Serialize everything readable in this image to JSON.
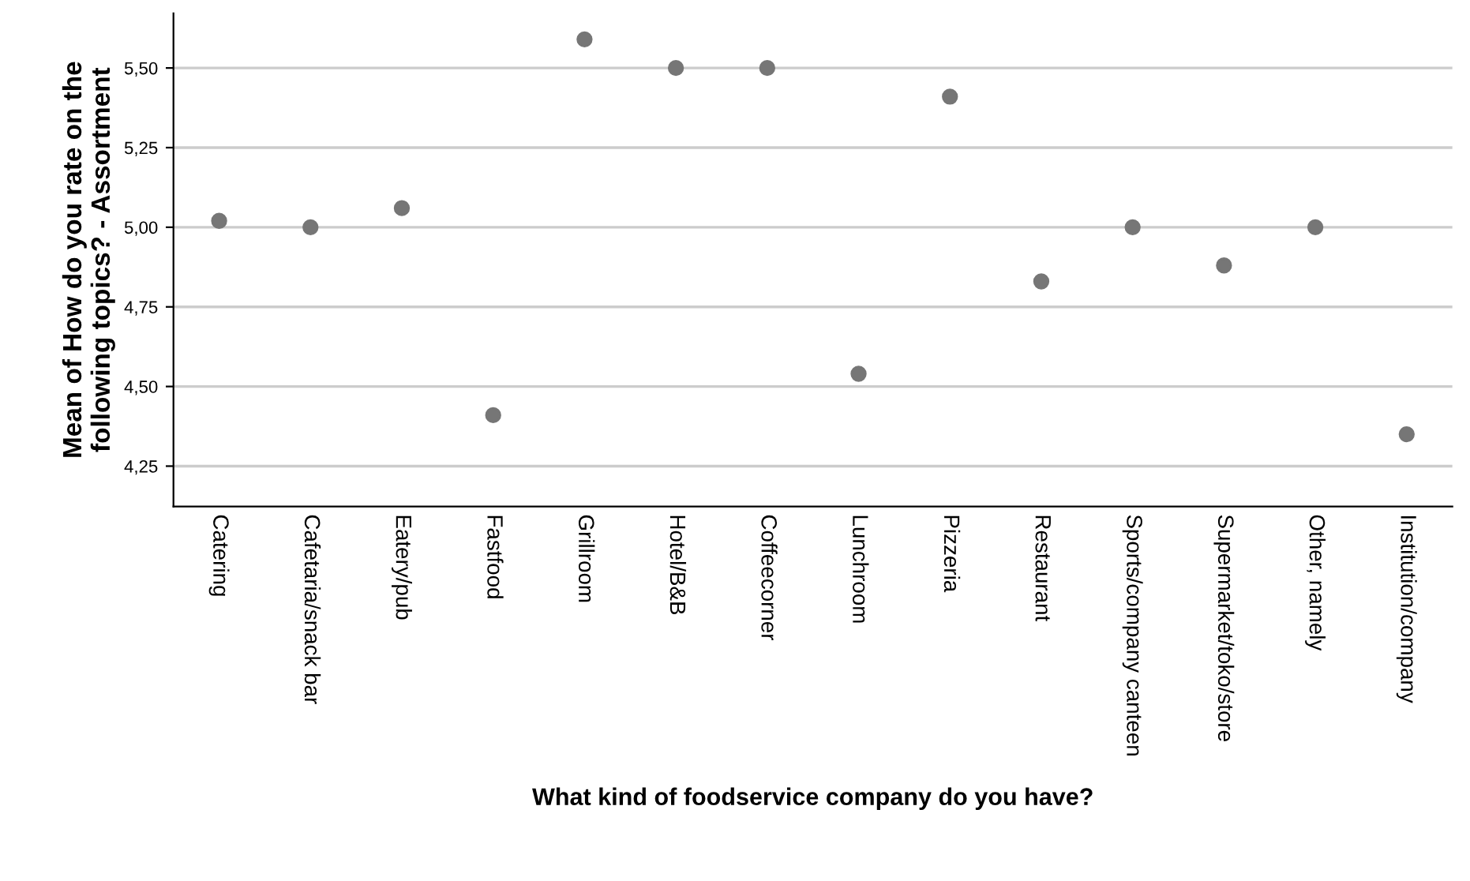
{
  "chart_data": {
    "type": "scatter",
    "xlabel": "What kind of foodservice company do you have?",
    "ylabel": "Mean of How do you rate on the following topics? - Assortment",
    "categories": [
      "Catering",
      "Cafetaria/snack bar",
      "Eatery/pub",
      "Fastfood",
      "Grillroom",
      "Hotel/B&B",
      "Coffeecorner",
      "Lunchroom",
      "Pizzeria",
      "Restaurant",
      "Sports/company canteen",
      "Supermarket/toko/store",
      "Other, namely",
      "Institution/company"
    ],
    "series": [
      {
        "color": "#767676",
        "values": [
          5.02,
          5.0,
          5.06,
          4.41,
          5.59,
          5.5,
          5.5,
          4.54,
          5.41,
          4.83,
          5.0,
          4.88,
          5.0,
          4.35
        ]
      }
    ],
    "ylim": [
      4.123,
      5.672
    ],
    "yticks": [
      {
        "value": 4.25,
        "label": "4,25"
      },
      {
        "value": 4.5,
        "label": "4,50"
      },
      {
        "value": 4.75,
        "label": "4,75"
      },
      {
        "value": 5.0,
        "label": "5,00"
      },
      {
        "value": 5.25,
        "label": "5,25"
      },
      {
        "value": 5.5,
        "label": "5,50"
      }
    ],
    "grid": "y",
    "marker": "circle"
  }
}
